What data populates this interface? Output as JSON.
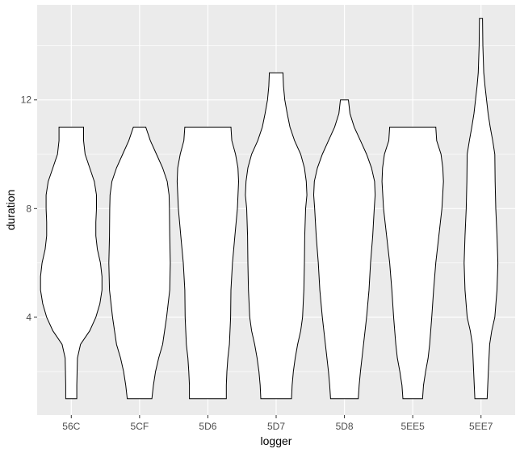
{
  "chart_data": {
    "type": "violin",
    "xlabel": "logger",
    "ylabel": "duration",
    "categories": [
      "56C",
      "5CF",
      "5D6",
      "5D7",
      "5D8",
      "5EE5",
      "5EE7"
    ],
    "ylim": [
      0.4,
      15.5
    ],
    "yticks": [
      4,
      8,
      12
    ],
    "grid": true,
    "colors": {
      "panel": "#ebebeb",
      "grid_major": "#ffffff",
      "fill": "#ffffff",
      "outline": "#000000"
    },
    "violins": [
      {
        "category": "56C",
        "profile": [
          [
            1,
            0.18
          ],
          [
            1.5,
            0.18
          ],
          [
            2.5,
            0.2
          ],
          [
            3,
            0.3
          ],
          [
            3.5,
            0.6
          ],
          [
            4,
            0.8
          ],
          [
            4.5,
            0.93
          ],
          [
            5,
            1
          ],
          [
            5.5,
            1
          ],
          [
            6,
            0.95
          ],
          [
            6.5,
            0.85
          ],
          [
            7,
            0.8
          ],
          [
            7.5,
            0.8
          ],
          [
            8,
            0.82
          ],
          [
            8.5,
            0.82
          ],
          [
            9,
            0.75
          ],
          [
            9.5,
            0.6
          ],
          [
            10,
            0.45
          ],
          [
            10.5,
            0.4
          ],
          [
            11,
            0.4
          ]
        ]
      },
      {
        "category": "5CF",
        "profile": [
          [
            1,
            0.4
          ],
          [
            1.5,
            0.45
          ],
          [
            2,
            0.52
          ],
          [
            2.5,
            0.62
          ],
          [
            3,
            0.75
          ],
          [
            4,
            0.88
          ],
          [
            5,
            0.98
          ],
          [
            6,
            1
          ],
          [
            7,
            0.98
          ],
          [
            8,
            0.97
          ],
          [
            8.5,
            0.96
          ],
          [
            9,
            0.9
          ],
          [
            9.5,
            0.75
          ],
          [
            10,
            0.55
          ],
          [
            10.5,
            0.35
          ],
          [
            11,
            0.2
          ]
        ]
      },
      {
        "category": "5D6",
        "profile": [
          [
            1,
            0.6
          ],
          [
            1.5,
            0.6
          ],
          [
            2,
            0.62
          ],
          [
            2.5,
            0.65
          ],
          [
            3,
            0.7
          ],
          [
            4,
            0.74
          ],
          [
            5,
            0.75
          ],
          [
            6,
            0.8
          ],
          [
            7,
            0.88
          ],
          [
            8,
            0.96
          ],
          [
            9,
            1
          ],
          [
            9.5,
            0.98
          ],
          [
            10,
            0.9
          ],
          [
            10.5,
            0.78
          ],
          [
            11,
            0.75
          ]
        ]
      },
      {
        "category": "5D7",
        "profile": [
          [
            1,
            0.5
          ],
          [
            1.5,
            0.52
          ],
          [
            2,
            0.56
          ],
          [
            2.5,
            0.62
          ],
          [
            3,
            0.7
          ],
          [
            3.5,
            0.8
          ],
          [
            4,
            0.86
          ],
          [
            5,
            0.9
          ],
          [
            6,
            0.92
          ],
          [
            7,
            0.93
          ],
          [
            8,
            0.96
          ],
          [
            8.5,
            1
          ],
          [
            9,
            0.98
          ],
          [
            9.5,
            0.92
          ],
          [
            10,
            0.8
          ],
          [
            10.5,
            0.6
          ],
          [
            11,
            0.45
          ],
          [
            11.5,
            0.36
          ],
          [
            12,
            0.28
          ],
          [
            12.5,
            0.24
          ],
          [
            13,
            0.22
          ]
        ]
      },
      {
        "category": "5D8",
        "profile": [
          [
            1,
            0.45
          ],
          [
            1.5,
            0.48
          ],
          [
            2,
            0.52
          ],
          [
            3,
            0.62
          ],
          [
            4,
            0.72
          ],
          [
            5,
            0.8
          ],
          [
            6,
            0.85
          ],
          [
            7,
            0.92
          ],
          [
            8,
            0.97
          ],
          [
            8.5,
            1
          ],
          [
            9,
            0.98
          ],
          [
            9.5,
            0.88
          ],
          [
            10,
            0.72
          ],
          [
            10.5,
            0.52
          ],
          [
            11,
            0.32
          ],
          [
            11.5,
            0.18
          ],
          [
            12,
            0.13
          ]
        ]
      },
      {
        "category": "5EE5",
        "profile": [
          [
            1,
            0.32
          ],
          [
            1.5,
            0.35
          ],
          [
            2,
            0.42
          ],
          [
            2.5,
            0.5
          ],
          [
            3,
            0.55
          ],
          [
            4,
            0.62
          ],
          [
            5,
            0.68
          ],
          [
            6,
            0.75
          ],
          [
            7,
            0.85
          ],
          [
            8,
            0.95
          ],
          [
            9,
            1
          ],
          [
            9.5,
            0.98
          ],
          [
            10,
            0.92
          ],
          [
            10.5,
            0.78
          ],
          [
            11,
            0.75
          ]
        ]
      },
      {
        "category": "5EE7",
        "profile": [
          [
            1,
            0.2
          ],
          [
            2,
            0.24
          ],
          [
            3,
            0.28
          ],
          [
            3.5,
            0.35
          ],
          [
            4,
            0.45
          ],
          [
            5,
            0.52
          ],
          [
            6,
            0.55
          ],
          [
            7,
            0.52
          ],
          [
            8,
            0.48
          ],
          [
            9,
            0.46
          ],
          [
            10,
            0.45
          ],
          [
            10.5,
            0.38
          ],
          [
            11,
            0.3
          ],
          [
            11.5,
            0.23
          ],
          [
            12,
            0.18
          ],
          [
            12.5,
            0.13
          ],
          [
            13,
            0.09
          ],
          [
            14,
            0.06
          ],
          [
            15,
            0.05
          ]
        ]
      }
    ]
  }
}
